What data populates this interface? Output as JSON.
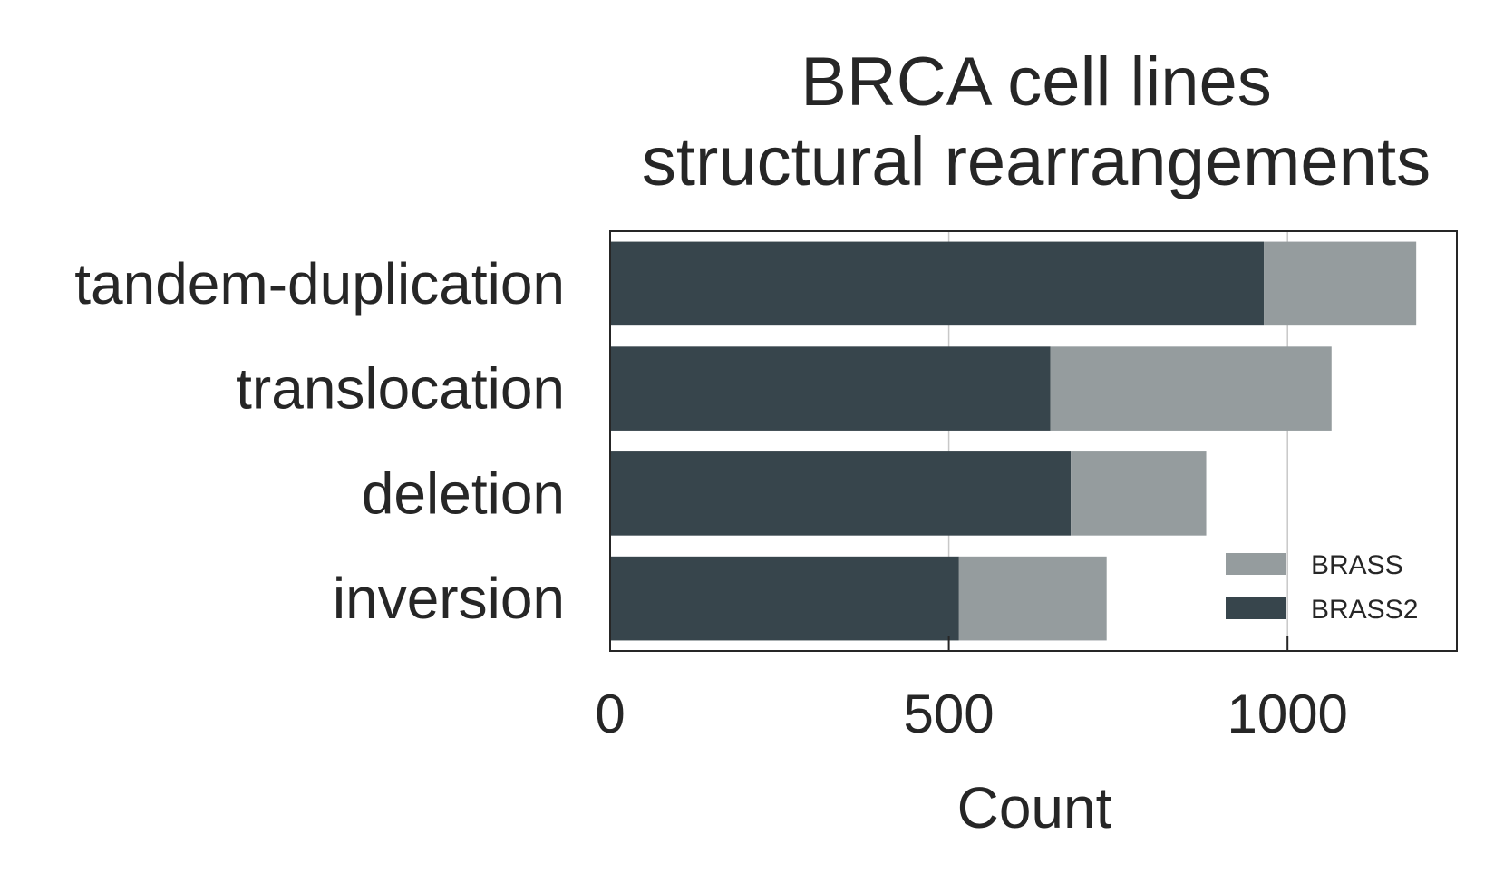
{
  "chart_data": {
    "type": "bar",
    "orientation": "horizontal",
    "stacked": true,
    "title": [
      "BRCA cell lines",
      "structural rearrangements"
    ],
    "xlabel": "Count",
    "ylabel": "",
    "xlim": [
      0,
      1250
    ],
    "xticks": [
      0,
      500,
      1000
    ],
    "xtick_labels": [
      "0",
      "500",
      "1000"
    ],
    "grid": true,
    "legend_position": "lower-right",
    "categories": [
      "tandem-duplication",
      "translocation",
      "deletion",
      "inversion"
    ],
    "series": [
      {
        "name": "BRASS2",
        "color": "#37454c",
        "values": [
          965,
          650,
          680,
          515
        ]
      },
      {
        "name": "BRASS",
        "color": "#959c9e",
        "values": [
          225,
          415,
          200,
          218
        ]
      }
    ],
    "legend": [
      {
        "name": "BRASS",
        "color": "#959c9e"
      },
      {
        "name": "BRASS2",
        "color": "#37454c"
      }
    ]
  }
}
